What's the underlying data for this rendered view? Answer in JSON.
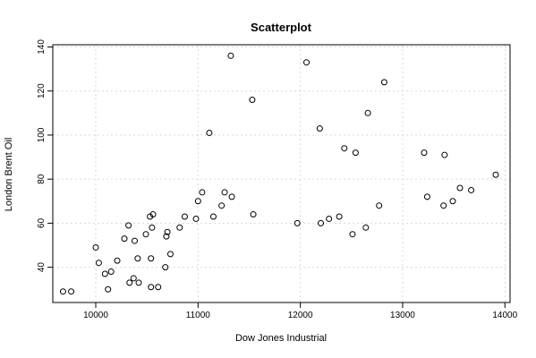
{
  "chart_data": {
    "type": "scatter",
    "title": "Scatterplot",
    "xlabel": "Dow Jones Industrial",
    "ylabel": "London Brent Oil",
    "xlim": [
      9580,
      14050
    ],
    "ylim": [
      24,
      141
    ],
    "xticks": [
      10000,
      11000,
      12000,
      13000,
      14000
    ],
    "yticks": [
      40,
      60,
      80,
      100,
      120,
      140
    ],
    "grid": true,
    "points": [
      {
        "x": 9680,
        "y": 29
      },
      {
        "x": 9760,
        "y": 29
      },
      {
        "x": 10000,
        "y": 49
      },
      {
        "x": 10030,
        "y": 42
      },
      {
        "x": 10090,
        "y": 37
      },
      {
        "x": 10120,
        "y": 30
      },
      {
        "x": 10150,
        "y": 38
      },
      {
        "x": 10210,
        "y": 43
      },
      {
        "x": 10280,
        "y": 53
      },
      {
        "x": 10320,
        "y": 59
      },
      {
        "x": 10330,
        "y": 33
      },
      {
        "x": 10370,
        "y": 35
      },
      {
        "x": 10380,
        "y": 52
      },
      {
        "x": 10410,
        "y": 44
      },
      {
        "x": 10420,
        "y": 33
      },
      {
        "x": 10490,
        "y": 55
      },
      {
        "x": 10530,
        "y": 63
      },
      {
        "x": 10540,
        "y": 44
      },
      {
        "x": 10540,
        "y": 31
      },
      {
        "x": 10550,
        "y": 58
      },
      {
        "x": 10560,
        "y": 64
      },
      {
        "x": 10610,
        "y": 31
      },
      {
        "x": 10680,
        "y": 40
      },
      {
        "x": 10690,
        "y": 54
      },
      {
        "x": 10700,
        "y": 56
      },
      {
        "x": 10730,
        "y": 46
      },
      {
        "x": 10820,
        "y": 58
      },
      {
        "x": 10870,
        "y": 63
      },
      {
        "x": 10980,
        "y": 62
      },
      {
        "x": 11000,
        "y": 70
      },
      {
        "x": 11040,
        "y": 74
      },
      {
        "x": 11110,
        "y": 101
      },
      {
        "x": 11150,
        "y": 63
      },
      {
        "x": 11230,
        "y": 68
      },
      {
        "x": 11260,
        "y": 74
      },
      {
        "x": 11320,
        "y": 136
      },
      {
        "x": 11330,
        "y": 72
      },
      {
        "x": 11530,
        "y": 116
      },
      {
        "x": 11540,
        "y": 64
      },
      {
        "x": 11970,
        "y": 60
      },
      {
        "x": 12060,
        "y": 133
      },
      {
        "x": 12190,
        "y": 103
      },
      {
        "x": 12200,
        "y": 60
      },
      {
        "x": 12280,
        "y": 62
      },
      {
        "x": 12380,
        "y": 63
      },
      {
        "x": 12430,
        "y": 94
      },
      {
        "x": 12510,
        "y": 55
      },
      {
        "x": 12540,
        "y": 92
      },
      {
        "x": 12640,
        "y": 58
      },
      {
        "x": 12660,
        "y": 110
      },
      {
        "x": 12770,
        "y": 68
      },
      {
        "x": 12820,
        "y": 124
      },
      {
        "x": 13210,
        "y": 92
      },
      {
        "x": 13240,
        "y": 72
      },
      {
        "x": 13400,
        "y": 68
      },
      {
        "x": 13410,
        "y": 91
      },
      {
        "x": 13490,
        "y": 70
      },
      {
        "x": 13560,
        "y": 76
      },
      {
        "x": 13670,
        "y": 75
      },
      {
        "x": 13910,
        "y": 82
      }
    ]
  }
}
